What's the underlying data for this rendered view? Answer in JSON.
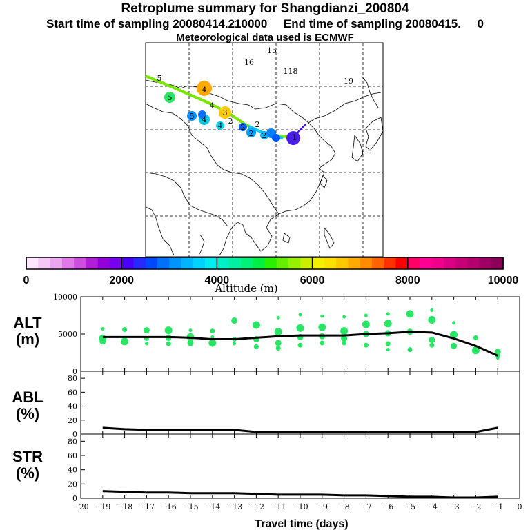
{
  "header": {
    "title": "Retroplume summary for Shangdianzi_200804",
    "subtitle": "Start time of sampling 20080414.210000     End time of sampling 20080415.     0",
    "met": "Meteorological data used is ECMWF"
  },
  "colorbar": {
    "label": "Altitude (m)",
    "tick_labels": [
      "0",
      "2000",
      "4000",
      "6000",
      "8000",
      "10000"
    ],
    "colors": [
      "#ffe6ff",
      "#f5c8f5",
      "#eba6f0",
      "#df7ae8",
      "#cc4de0",
      "#b21ed8",
      "#9400dc",
      "#7800f0",
      "#4a00ff",
      "#2828ff",
      "#0048ff",
      "#0070ff",
      "#0094ff",
      "#00b4ff",
      "#00d2ff",
      "#00ecf0",
      "#00f0c8",
      "#00f0a0",
      "#00f078",
      "#00f046",
      "#28f000",
      "#64f000",
      "#96f000",
      "#c8f000",
      "#f0f000",
      "#ffe100",
      "#ffc800",
      "#ffaa00",
      "#ff8c00",
      "#ff6400",
      "#ff3200",
      "#ff0000",
      "#ff0064",
      "#ff0096",
      "#f0008c",
      "#dc0082",
      "#c80078",
      "#b4006e",
      "#a00064",
      "#8c005a"
    ]
  },
  "map": {
    "day_labels": [
      {
        "t": "5",
        "x": 231,
        "y": 113
      },
      {
        "t": "4",
        "x": 296,
        "y": 130
      },
      {
        "t": "5",
        "x": 246,
        "y": 141
      },
      {
        "t": "4",
        "x": 307,
        "y": 153
      },
      {
        "t": "3",
        "x": 326,
        "y": 163
      },
      {
        "t": "5",
        "x": 278,
        "y": 168
      },
      {
        "t": "4",
        "x": 296,
        "y": 173
      },
      {
        "t": "2",
        "x": 334,
        "y": 175
      },
      {
        "t": "2",
        "x": 373,
        "y": 180
      },
      {
        "t": "4",
        "x": 319,
        "y": 182
      },
      {
        "t": "2",
        "x": 352,
        "y": 184
      },
      {
        "t": "2",
        "x": 364,
        "y": 193
      },
      {
        "t": "2",
        "x": 383,
        "y": 196
      },
      {
        "t": "1",
        "x": 427,
        "y": 199
      },
      {
        "t": "15",
        "x": 394,
        "y": 73
      },
      {
        "t": "16",
        "x": 361,
        "y": 90
      },
      {
        "t": "118",
        "x": 421,
        "y": 103
      },
      {
        "t": "19",
        "x": 505,
        "y": 117
      }
    ]
  },
  "chart_data": [
    {
      "type": "scatter",
      "name": "ALT",
      "ylabel": "ALT (m)",
      "ylim": [
        0,
        10000
      ],
      "yticks": [
        "10000",
        "5000",
        "0"
      ],
      "x": [
        -19,
        -18,
        -17,
        -16,
        -15,
        -14,
        -13,
        -12,
        -11,
        -10,
        -9,
        -8,
        -7,
        -6,
        -5,
        -4,
        -3,
        -2,
        -1
      ],
      "mean_line": [
        4600,
        4600,
        4600,
        4600,
        4500,
        4300,
        4300,
        4500,
        4700,
        4800,
        4800,
        4800,
        5000,
        5100,
        5300,
        5200,
        4400,
        3400,
        2100
      ],
      "plume_points": [
        [
          -19,
          5700
        ],
        [
          -19,
          4400
        ],
        [
          -19,
          4000
        ],
        [
          -18,
          5600
        ],
        [
          -18,
          4500
        ],
        [
          -18,
          4000
        ],
        [
          -17,
          5500
        ],
        [
          -17,
          4400
        ],
        [
          -17,
          3700
        ],
        [
          -16,
          5500
        ],
        [
          -16,
          4500
        ],
        [
          -16,
          3700
        ],
        [
          -15,
          5500
        ],
        [
          -15,
          4600
        ],
        [
          -15,
          3800
        ],
        [
          -14,
          5400
        ],
        [
          -14,
          4600
        ],
        [
          -14,
          3800
        ],
        [
          -13,
          6800
        ],
        [
          -13,
          4300
        ],
        [
          -13,
          3700
        ],
        [
          -12,
          6200
        ],
        [
          -12,
          4300
        ],
        [
          -12,
          3300
        ],
        [
          -11,
          7200
        ],
        [
          -11,
          5300
        ],
        [
          -11,
          3800
        ],
        [
          -11,
          3100
        ],
        [
          -10,
          7600
        ],
        [
          -10,
          5800
        ],
        [
          -10,
          4600
        ],
        [
          -10,
          3500
        ],
        [
          -9,
          7400
        ],
        [
          -9,
          5900
        ],
        [
          -9,
          4700
        ],
        [
          -9,
          3800
        ],
        [
          -8,
          7300
        ],
        [
          -8,
          5400
        ],
        [
          -8,
          4400
        ],
        [
          -8,
          3800
        ],
        [
          -7,
          7500
        ],
        [
          -7,
          6300
        ],
        [
          -7,
          5000
        ],
        [
          -7,
          3500
        ],
        [
          -6,
          7700
        ],
        [
          -6,
          6400
        ],
        [
          -6,
          5100
        ],
        [
          -6,
          3700
        ],
        [
          -6,
          2900
        ],
        [
          -5,
          7700
        ],
        [
          -5,
          5300
        ],
        [
          -5,
          2900
        ],
        [
          -4,
          8200
        ],
        [
          -4,
          6900
        ],
        [
          -4,
          4200
        ],
        [
          -4,
          3500
        ],
        [
          -3,
          6500
        ],
        [
          -3,
          4900
        ],
        [
          -3,
          3400
        ],
        [
          -2,
          4500
        ],
        [
          -2,
          3300
        ],
        [
          -2,
          2800
        ],
        [
          -1,
          2600
        ],
        [
          -1,
          2100
        ],
        [
          -1,
          1800
        ]
      ]
    },
    {
      "type": "line",
      "name": "ABL",
      "ylabel": "ABL (%)",
      "ylim": [
        0,
        90
      ],
      "yticks": [
        "80",
        "60",
        "40",
        "20",
        "0"
      ],
      "x": [
        -19,
        -18,
        -17,
        -16,
        -15,
        -14,
        -13,
        -12,
        -11,
        -10,
        -9,
        -8,
        -7,
        -6,
        -5,
        -4,
        -3,
        -2,
        -1
      ],
      "values": [
        9,
        7,
        6,
        6,
        6,
        6,
        6,
        3,
        3,
        3,
        3,
        3,
        3,
        3,
        3,
        3,
        3,
        3,
        9
      ]
    },
    {
      "type": "line",
      "name": "STR",
      "ylabel": "STR (%)",
      "ylim": [
        0,
        90
      ],
      "yticks": [
        "80",
        "60",
        "40",
        "20",
        "0"
      ],
      "x": [
        -19,
        -18,
        -17,
        -16,
        -15,
        -14,
        -13,
        -12,
        -11,
        -10,
        -9,
        -8,
        -7,
        -6,
        -5,
        -4,
        -3,
        -2,
        -1
      ],
      "xlabel": "Travel time (days)",
      "xticks": [
        "−20",
        "−19",
        "−18",
        "−17",
        "−16",
        "−15",
        "−14",
        "−13",
        "−12",
        "−11",
        "−10",
        "−9",
        "−8",
        "−7",
        "−6",
        "−5",
        "−4",
        "−3",
        "−2",
        "−1",
        "0"
      ],
      "values": [
        10,
        9,
        8,
        8,
        7,
        7,
        7,
        6,
        5,
        5,
        5,
        4,
        4,
        3,
        2,
        2,
        1,
        1,
        2
      ]
    }
  ],
  "panel_labels": {
    "alt": [
      "ALT",
      "(m)"
    ],
    "abl": [
      "ABL",
      "(%)"
    ],
    "str": [
      "STR",
      "(%)"
    ]
  }
}
